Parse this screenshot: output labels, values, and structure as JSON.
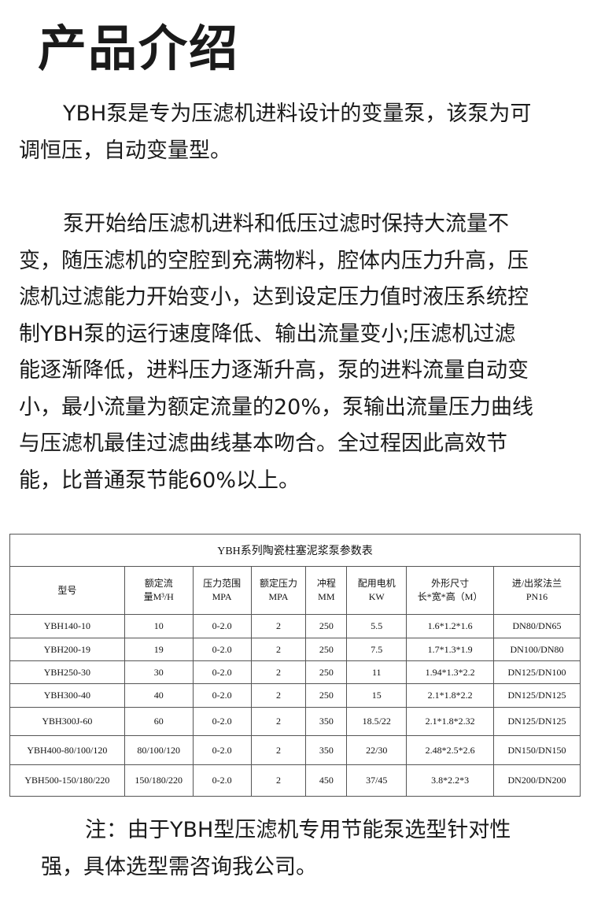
{
  "title": "产品介绍",
  "paragraphs": [
    [
      "YBH泵是专为压滤机进料设计的变量泵，该泵为可",
      "调恒压，自动变量型。"
    ],
    [
      "泵开始给压滤机进料和低压过滤时保持大流量不",
      "变，随压滤机的空腔到充满物料，腔体内压力升高，压",
      "滤机过滤能力开始变小，达到设定压力值时液压系统控",
      "制YBH泵的运行速度降低、输出流量变小;压滤机过滤",
      "能逐渐降低，进料压力逐渐升高，泵的进料流量自动变",
      "小，最小流量为额定流量的20%，泵输出流量压力曲线",
      "与压滤机最佳过滤曲线基本吻合。全过程因此高效节",
      "能，比普通泵节能60%以上。"
    ],
    [
      "注：由于YBH型压滤机专用节能泵选型针对性",
      "强，具体选型需咨询我公司。"
    ]
  ],
  "table": {
    "caption": "YBH系列陶瓷柱塞泥浆泵参数表",
    "headers": [
      [
        "型号"
      ],
      [
        "额定流",
        "量M³/H"
      ],
      [
        "压力范围",
        "MPA"
      ],
      [
        "额定压力",
        "MPA"
      ],
      [
        "冲程",
        "MM"
      ],
      [
        "配用电机",
        "KW"
      ],
      [
        "外形尺寸",
        "长*宽*高（M）"
      ],
      [
        "进/出浆法兰",
        "PN16"
      ]
    ],
    "rows": [
      [
        "YBH140-10",
        "10",
        "0-2.0",
        "2",
        "250",
        "5.5",
        "1.6*1.2*1.6",
        "DN80/DN65"
      ],
      [
        "YBH200-19",
        "19",
        "0-2.0",
        "2",
        "250",
        "7.5",
        "1.7*1.3*1.9",
        "DN100/DN80"
      ],
      [
        "YBH250-30",
        "30",
        "0-2.0",
        "2",
        "250",
        "11",
        "1.94*1.3*2.2",
        "DN125/DN100"
      ],
      [
        "YBH300-40",
        "40",
        "0-2.0",
        "2",
        "250",
        "15",
        "2.1*1.8*2.2",
        "DN125/DN125"
      ],
      [
        "YBH300J-60",
        "60",
        "0-2.0",
        "2",
        "350",
        "18.5/22",
        "2.1*1.8*2.32",
        "DN125/DN125"
      ],
      [
        "YBH400-80/100/120",
        "80/100/120",
        "0-2.0",
        "2",
        "350",
        "22/30",
        "2.48*2.5*2.6",
        "DN150/DN150"
      ],
      [
        "YBH500-150/180/220",
        "150/180/220",
        "0-2.0",
        "2",
        "450",
        "37/45",
        "3.8*2.2*3",
        "DN200/DN200"
      ]
    ]
  }
}
